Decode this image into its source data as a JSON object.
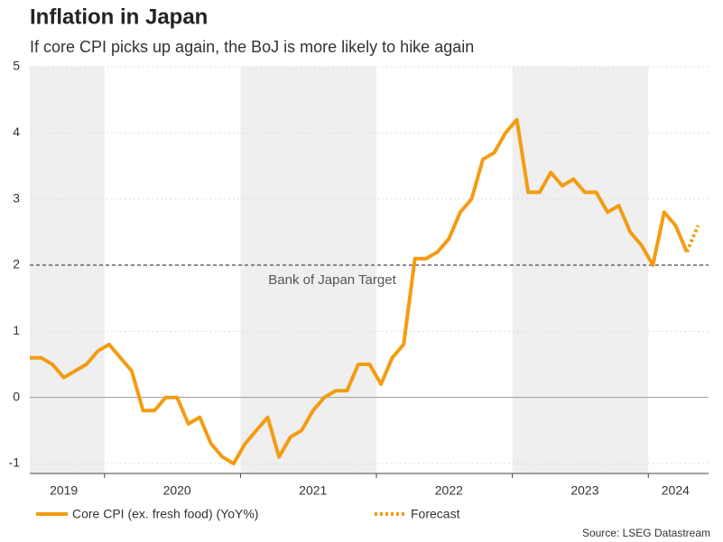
{
  "chart_data": {
    "type": "line",
    "title": "Inflation in Japan",
    "subtitle": "If core CPI picks up again, the BoJ is more likely to hike again",
    "categories": [
      null,
      null,
      null,
      "2019",
      null,
      null,
      null,
      null,
      null,
      null,
      null,
      null,
      null,
      "2020",
      null,
      null,
      null,
      null,
      null,
      null,
      null,
      null,
      null,
      null,
      null,
      "2021",
      null,
      null,
      null,
      null,
      null,
      null,
      null,
      null,
      null,
      null,
      null,
      "2022",
      null,
      null,
      null,
      null,
      null,
      null,
      null,
      null,
      null,
      null,
      null,
      "2023",
      null,
      null,
      null,
      null,
      null,
      null,
      null,
      "2024",
      null,
      null
    ],
    "series": [
      {
        "name": "Core CPI (ex. fresh food) (YoY%)",
        "color": "#f39c12",
        "line_style": "solid",
        "values": [
          0.6,
          0.6,
          0.5,
          0.3,
          0.4,
          0.5,
          0.7,
          0.8,
          0.6,
          0.4,
          -0.2,
          -0.2,
          0,
          0,
          -0.4,
          -0.3,
          -0.7,
          -0.9,
          -1.0,
          -0.7,
          -0.5,
          -0.3,
          -0.9,
          -0.6,
          -0.5,
          -0.2,
          0,
          0.1,
          0.1,
          0.5,
          0.5,
          0.2,
          0.6,
          0.8,
          2.1,
          2.1,
          2.2,
          2.4,
          2.8,
          3.0,
          3.6,
          3.7,
          4.0,
          4.2,
          3.1,
          3.1,
          3.4,
          3.2,
          3.3,
          3.1,
          3.1,
          2.8,
          2.9,
          2.5,
          2.3,
          2.0,
          2.8,
          2.6,
          2.2,
          null
        ]
      },
      {
        "name": "Forecast",
        "color": "#f39c12",
        "line_style": "dotted",
        "values": [
          null,
          null,
          null,
          null,
          null,
          null,
          null,
          null,
          null,
          null,
          null,
          null,
          null,
          null,
          null,
          null,
          null,
          null,
          null,
          null,
          null,
          null,
          null,
          null,
          null,
          null,
          null,
          null,
          null,
          null,
          null,
          null,
          null,
          null,
          null,
          null,
          null,
          null,
          null,
          null,
          null,
          null,
          null,
          null,
          null,
          null,
          null,
          null,
          null,
          null,
          null,
          null,
          null,
          null,
          null,
          null,
          null,
          null,
          2.2,
          2.6
        ]
      }
    ],
    "ylim": [
      -1.15,
      5
    ],
    "yticks": [
      -1,
      0,
      1,
      2,
      3,
      4,
      5
    ],
    "grid": true,
    "reference_line": {
      "value": 2,
      "label": "Bank of Japan Target"
    },
    "legend": "bottom",
    "source": "Source: LSEG Datastream"
  }
}
